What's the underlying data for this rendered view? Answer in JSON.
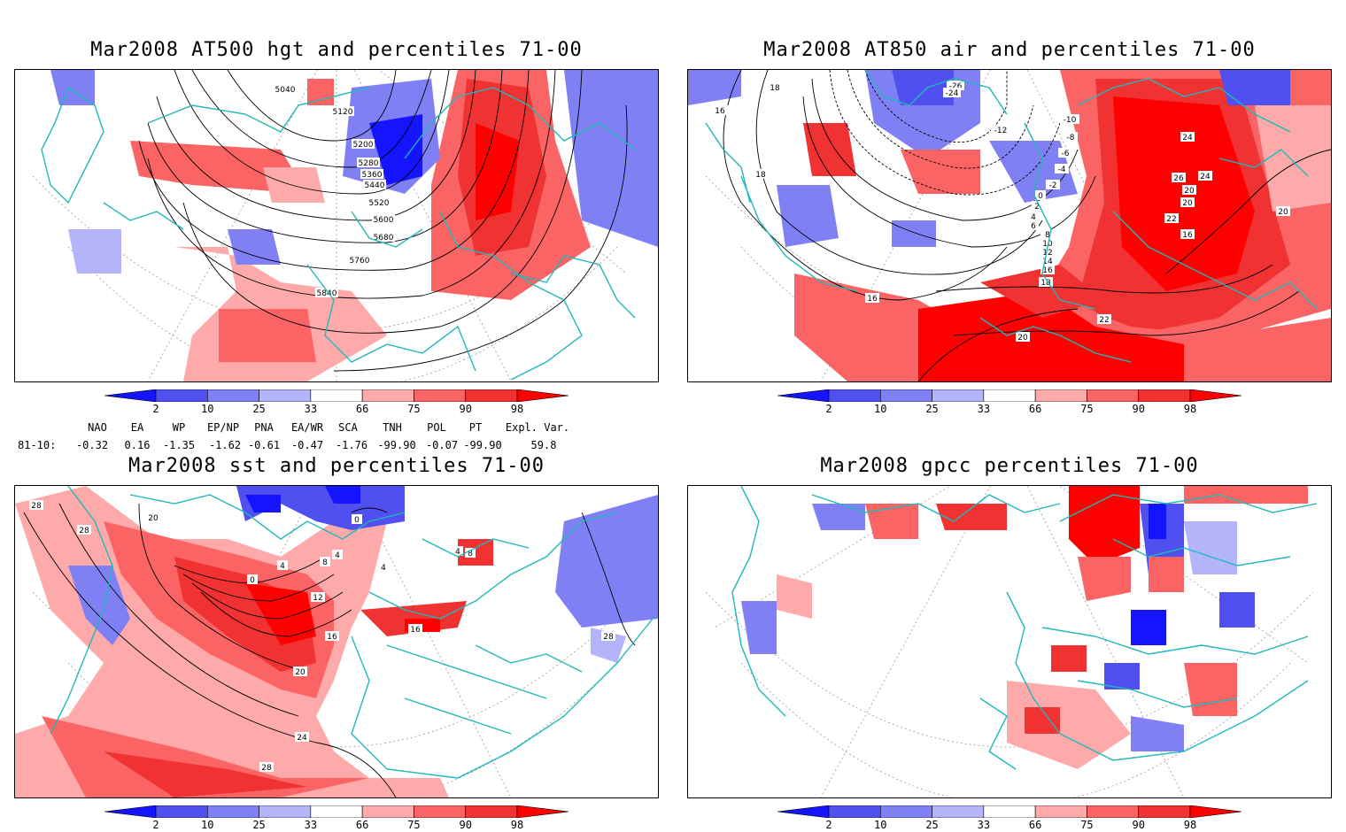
{
  "panels": [
    {
      "id": "p1",
      "title": "Mar2008 AT500 hgt and percentiles 71-00",
      "contour_labels": [
        "5040",
        "5120",
        "5200",
        "5280",
        "5360",
        "5440",
        "5520",
        "5600",
        "5680",
        "5760",
        "5840"
      ]
    },
    {
      "id": "p2",
      "title": "Mar2008 AT850 air and percentiles 71-00",
      "contour_labels": [
        "18",
        "16",
        "-26",
        "-24",
        "-12",
        "-10",
        "-8",
        "-6",
        "-4",
        "-2",
        "0",
        "2",
        "4",
        "6",
        "8",
        "10",
        "12",
        "14",
        "16",
        "18",
        "20",
        "22",
        "24",
        "26",
        "20",
        "16",
        "20",
        "24",
        "22",
        "20",
        "16",
        "18"
      ]
    },
    {
      "id": "p3",
      "title": "Mar2008 sst and percentiles 71-00",
      "contour_labels": [
        "28",
        "28",
        "20",
        "0",
        "0",
        "4",
        "4",
        "8",
        "4",
        "12",
        "16",
        "16",
        "20",
        "24",
        "28",
        "28",
        "4",
        "8"
      ]
    },
    {
      "id": "p4",
      "title": "Mar2008 gpcc percentiles 71-00",
      "contour_labels": []
    }
  ],
  "colorbar": {
    "labels": [
      "2",
      "10",
      "25",
      "33",
      "66",
      "75",
      "90",
      "98"
    ],
    "colors": [
      "#1414ff",
      "#5050f0",
      "#8080f5",
      "#b4b4fa",
      "#ffffff",
      "#ffaaaa",
      "#fa6464",
      "#f03232",
      "#ff0000"
    ]
  },
  "indices": {
    "headers": [
      "NAO",
      "EA",
      "WP",
      "EP/NP",
      "PNA",
      "EA/WR",
      "SCA",
      "TNH",
      "POL",
      "PT",
      "Expl. Var."
    ],
    "row_label": "81-10:",
    "values": [
      "-0.32",
      "0.16",
      "-1.35",
      "-1.62",
      "-0.61",
      "-0.47",
      "-1.76",
      "-99.90",
      "-0.07",
      "-99.90",
      "59.8"
    ]
  }
}
